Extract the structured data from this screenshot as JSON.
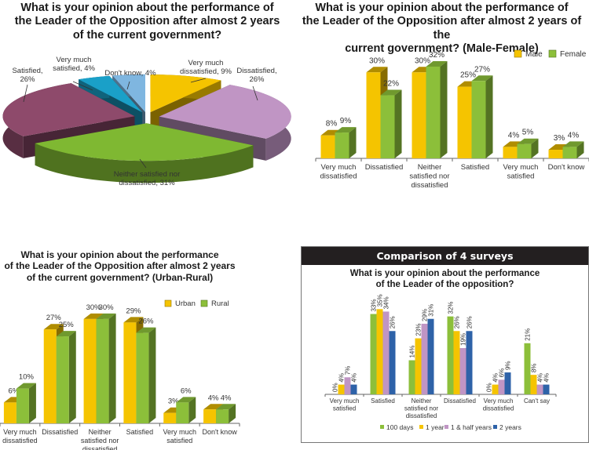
{
  "colors": {
    "yellow": "#f5c400",
    "green": "#8cbf3a",
    "lilac": "#c095c4",
    "blue": "#2e62a8",
    "purple": "#8e4a6b",
    "teal": "#1aa0c8",
    "lightblue": "#7fb6e0",
    "pie_green": "#7fb832"
  },
  "chart_data": [
    {
      "id": "overall-pie",
      "type": "pie",
      "title": "What is your opinion about the performance of the Leader of the Opposition after almost 2 years of the current government?",
      "title_lines": [
        "What is your opinion about the performance of",
        "the Leader of the Opposition after almost 2 years",
        "of the current government?"
      ],
      "slices": [
        {
          "label": "Very much dissatisfied",
          "value": 9,
          "display": "Very much|dissatisfied, 9%",
          "color": "#f5c400"
        },
        {
          "label": "Dissatisfied",
          "value": 26,
          "display": "Dissatisfied,|26%",
          "color": "#c095c4"
        },
        {
          "label": "Neither satisfied nor dissatisfied",
          "value": 31,
          "display": "Neither satisfied nor|dissatisfied, 31%",
          "color": "#7fb832"
        },
        {
          "label": "Satisfied",
          "value": 26,
          "display": "Satisfied,|26%",
          "color": "#8e4a6b"
        },
        {
          "label": "Very much satisfied",
          "value": 4,
          "display": "Very much|satisfied, 4%",
          "color": "#1aa0c8"
        },
        {
          "label": "Don't know",
          "value": 4,
          "display": "Don't know, 4%",
          "color": "#7fb6e0"
        }
      ]
    },
    {
      "id": "male-female",
      "type": "bar",
      "title": "What is your opinion about the performance of the Leader of the Opposition after almost 2 years of the current government? (Male-Female)",
      "title_lines": [
        "What is your opinion about the performance of",
        "the Leader of the Opposition after almost 2 years of the",
        "current government? (Male-Female)"
      ],
      "categories": [
        "Very much|dissatisfied",
        "Dissatisfied",
        "Neither|satisfied nor|dissatisfied",
        "Satisfied",
        "Very much|satisfied",
        "Don't know"
      ],
      "series": [
        {
          "name": "Male",
          "values": [
            8,
            30,
            30,
            25,
            4,
            3
          ],
          "color": "#f5c400"
        },
        {
          "name": "Female",
          "values": [
            9,
            22,
            32,
            27,
            5,
            4
          ],
          "color": "#8cbf3a"
        }
      ],
      "ylim": [
        0,
        35
      ],
      "legend": "top-right",
      "grid": false
    },
    {
      "id": "urban-rural",
      "type": "bar",
      "title": "What is your opinion about the performance of the Leader of the Opposition after almost 2 years of the current government? (Urban-Rural)",
      "title_lines": [
        "What is your opinion about the performance",
        "of the Leader of the Opposition after almost 2 years",
        "of the current government? (Urban-Rural)"
      ],
      "categories": [
        "Very much|dissatisfied",
        "Dissatisfied",
        "Neither|satisfied nor|dissatisfied",
        "Satisfied",
        "Very much|satisfied",
        "Don't know"
      ],
      "series": [
        {
          "name": "Urban",
          "values": [
            6,
            27,
            30,
            29,
            3,
            4
          ],
          "color": "#f5c400"
        },
        {
          "name": "Rural",
          "values": [
            10,
            25,
            30,
            26,
            6,
            4
          ],
          "color": "#8cbf3a"
        }
      ],
      "ylim": [
        0,
        32
      ],
      "legend": "top-right",
      "grid": false
    },
    {
      "id": "four-surveys",
      "type": "bar",
      "header": "Comparison of 4 surveys",
      "title": "What is your opinion about the performance of the Leader of the opposition?",
      "title_lines": [
        "What is your opinion about the performance",
        "of the Leader of the opposition?"
      ],
      "categories": [
        "Very much|satisfied",
        "Satisfied",
        "Neither|satisfied nor|dissatisfied",
        "Dissatisfied",
        "Very much|dissatisfied",
        "Can't say"
      ],
      "series": [
        {
          "name": "100 days",
          "values": [
            0,
            33,
            14,
            32,
            0,
            21
          ],
          "color": "#8cbf3a"
        },
        {
          "name": "1 year",
          "values": [
            4,
            35,
            23,
            26,
            4,
            8
          ],
          "color": "#f5c400"
        },
        {
          "name": "1 & half years",
          "values": [
            7,
            34,
            29,
            19,
            6,
            4
          ],
          "color": "#c095c4"
        },
        {
          "name": "2 years",
          "values": [
            4,
            26,
            31,
            26,
            9,
            4
          ],
          "color": "#2e62a8"
        }
      ],
      "ylim": [
        0,
        38
      ],
      "legend": "bottom",
      "grid": false
    }
  ]
}
